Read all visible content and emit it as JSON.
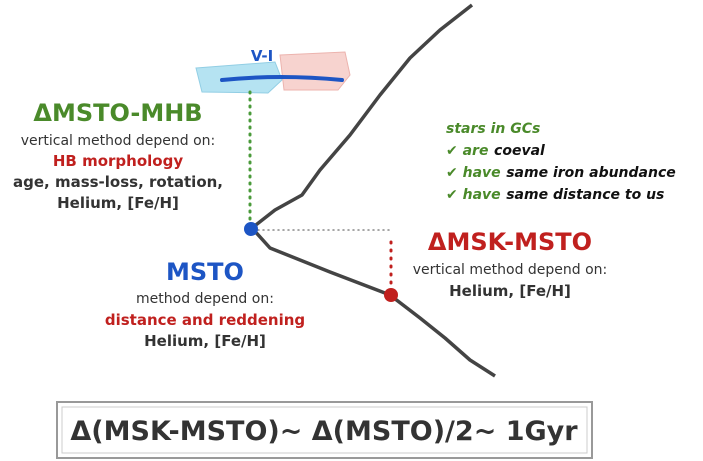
{
  "axis_label": "V-I",
  "msto_mhb": {
    "title": "ΔMSTO-MHB",
    "lines": [
      "vertical method depend on:",
      "HB morphology",
      "age, mass-loss, rotation,",
      "Helium, [Fe/H]"
    ]
  },
  "msto": {
    "title": "MSTO",
    "lines": [
      "method depend on:",
      "distance and reddening",
      "Helium, [Fe/H]"
    ]
  },
  "msk_msto": {
    "title": "ΔMSK-MSTO",
    "lines": [
      "vertical method depend on:",
      "Helium, [Fe/H]"
    ]
  },
  "gc_notes": {
    "title": "stars in GCs",
    "items": [
      {
        "check": "✔ are",
        "rest": "coeval"
      },
      {
        "check": "✔ have",
        "rest": "same iron abundance"
      },
      {
        "check": "✔ have",
        "rest": "same distance to us"
      }
    ]
  },
  "summary": "Δ(MSK-MSTO)~ Δ(MSTO)/2~ 1Gyr"
}
